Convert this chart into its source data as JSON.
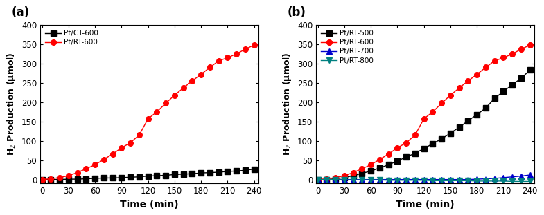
{
  "time": [
    0,
    10,
    20,
    30,
    40,
    50,
    60,
    70,
    80,
    90,
    100,
    110,
    120,
    130,
    140,
    150,
    160,
    170,
    180,
    190,
    200,
    210,
    220,
    230,
    240
  ],
  "panel_a": {
    "panel_label": "(a)",
    "series": [
      {
        "label": "Pt/CT-600",
        "color": "#000000",
        "marker": "s",
        "markerfacecolor": "#000000",
        "values": [
          0,
          0,
          0,
          1,
          1,
          2,
          3,
          4,
          4,
          5,
          6,
          7,
          9,
          10,
          11,
          13,
          14,
          15,
          17,
          18,
          19,
          21,
          22,
          24,
          27
        ]
      },
      {
        "label": "Pt/RT-600",
        "color": "#ff0000",
        "marker": "o",
        "markerfacecolor": "#ff0000",
        "values": [
          0,
          2,
          5,
          10,
          18,
          28,
          38,
          52,
          66,
          82,
          95,
          115,
          157,
          175,
          197,
          218,
          237,
          255,
          272,
          290,
          307,
          315,
          325,
          337,
          348
        ]
      }
    ]
  },
  "panel_b": {
    "panel_label": "(b)",
    "series": [
      {
        "label": "Pt/RT-500",
        "color": "#000000",
        "marker": "s",
        "markerfacecolor": "#000000",
        "values": [
          0,
          0,
          2,
          5,
          10,
          16,
          22,
          30,
          38,
          48,
          58,
          68,
          80,
          93,
          105,
          120,
          135,
          152,
          168,
          185,
          210,
          228,
          245,
          262,
          283
        ]
      },
      {
        "label": "Pt/RT-600",
        "color": "#ff0000",
        "marker": "o",
        "markerfacecolor": "#ff0000",
        "values": [
          0,
          2,
          5,
          10,
          18,
          28,
          38,
          52,
          66,
          82,
          95,
          115,
          157,
          175,
          197,
          218,
          237,
          255,
          272,
          290,
          307,
          315,
          325,
          337,
          348
        ]
      },
      {
        "label": "Pt/RT-700",
        "color": "#0000cc",
        "marker": "^",
        "markerfacecolor": "#0000cc",
        "values": [
          0,
          0,
          0,
          0,
          0,
          0,
          0,
          0,
          0,
          0,
          0,
          0,
          0,
          0,
          0,
          0,
          0,
          0,
          1,
          2,
          3,
          5,
          7,
          9,
          12
        ]
      },
      {
        "label": "Pt/RT-800",
        "color": "#008080",
        "marker": "v",
        "markerfacecolor": "#008080",
        "values": [
          0,
          0,
          0,
          -1,
          -1,
          -1,
          -1,
          -1,
          -2,
          -2,
          -2,
          -2,
          -2,
          -3,
          -3,
          -3,
          -3,
          -3,
          -4,
          -4,
          -4,
          -4,
          -5,
          -5,
          -5
        ]
      }
    ]
  },
  "ylabel": "H$_2$ Production (μmol)",
  "xlabel": "Time (min)",
  "ylim": [
    -10,
    400
  ],
  "xlim": [
    -2,
    245
  ],
  "yticks": [
    0,
    50,
    100,
    150,
    200,
    250,
    300,
    350,
    400
  ],
  "xticks": [
    0,
    30,
    60,
    90,
    120,
    150,
    180,
    210,
    240
  ],
  "bg_color": "white",
  "markersize": 5.5,
  "linewidth": 1.0
}
